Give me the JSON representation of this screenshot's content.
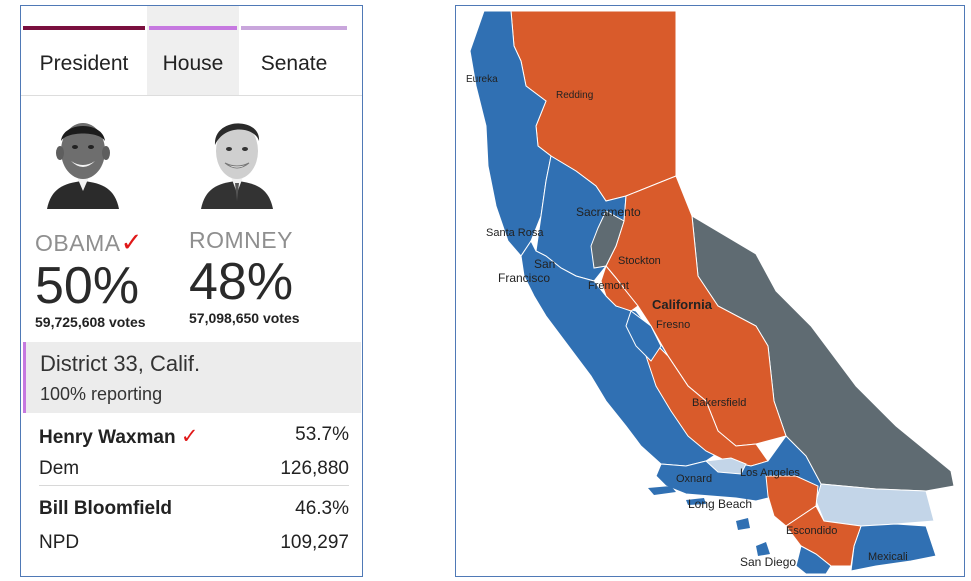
{
  "tabs": [
    {
      "label": "President",
      "color": "#7a0f3e",
      "active": false
    },
    {
      "label": "House",
      "color": "#c679e0",
      "active": true
    },
    {
      "label": "Senate",
      "color": "#c9a6dc",
      "active": false
    }
  ],
  "candidates": [
    {
      "name": "OBAMA",
      "check": "✓",
      "pct": "50%",
      "votes": "59,725,608 votes"
    },
    {
      "name": "ROMNEY",
      "check": "",
      "pct": "48%",
      "votes": "57,098,650 votes"
    }
  ],
  "district": {
    "title": "District 33, Calif.",
    "reporting": "100% reporting"
  },
  "results": [
    {
      "name": "Henry Waxman",
      "check": "✓",
      "pct": "53.7%",
      "party": "Dem",
      "votes": "126,880"
    },
    {
      "name": "Bill Bloomfield",
      "check": "",
      "pct": "46.3%",
      "party": "NPD",
      "votes": "109,297"
    }
  ],
  "map": {
    "colors": {
      "dem": "#3070b3",
      "rep": "#d95b2b",
      "gray": "#5f6b72",
      "light": "#c3d5e8"
    },
    "cities": [
      "Eureka",
      "Redding",
      "Sacramento",
      "Santa Rosa",
      "Stockton",
      "San",
      "Francisco",
      "Fremont",
      "California",
      "Fresno",
      "Bakersfield",
      "Oxnard",
      "Los Angeles",
      "Long Beach",
      "Escondido",
      "San Diego",
      "Mexicali"
    ]
  }
}
